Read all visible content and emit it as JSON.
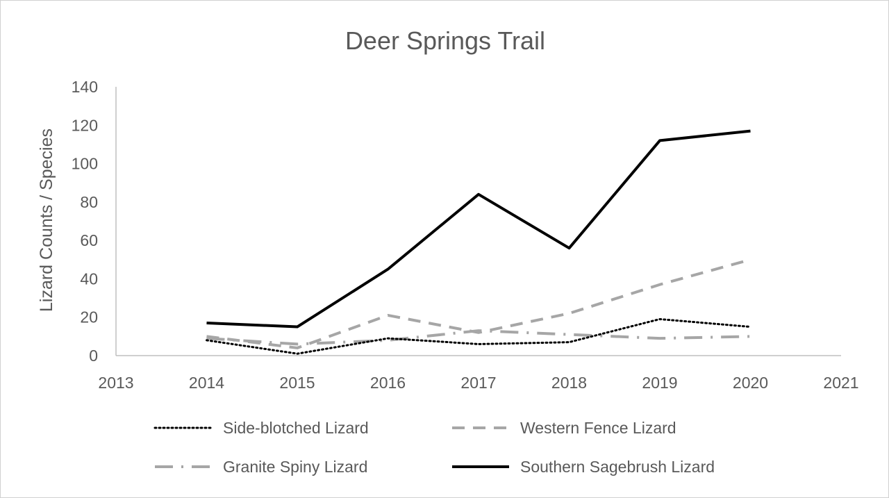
{
  "chart_data": {
    "type": "line",
    "title": "Deer Springs Trail",
    "xlabel": "",
    "ylabel": "Lizard Counts / Species",
    "xlim": [
      2013,
      2021
    ],
    "ylim": [
      0,
      140
    ],
    "x_ticks": [
      "2013",
      "2014",
      "2015",
      "2016",
      "2017",
      "2018",
      "2019",
      "2020",
      "2021"
    ],
    "y_ticks": [
      "0",
      "20",
      "40",
      "60",
      "80",
      "100",
      "120",
      "140"
    ],
    "grid": false,
    "legend_position": "bottom",
    "x": [
      2014,
      2015,
      2016,
      2017,
      2018,
      2019,
      2020
    ],
    "series": [
      {
        "name": "Side-blotched Lizard",
        "style": "dotted",
        "color": "#000000",
        "values": [
          8,
          1,
          9,
          6,
          7,
          19,
          15
        ]
      },
      {
        "name": "Western Fence Lizard",
        "style": "dashed",
        "color": "#a6a6a6",
        "values": [
          10,
          4,
          21,
          12,
          22,
          37,
          50
        ]
      },
      {
        "name": "Granite Spiny Lizard",
        "style": "dash-dot",
        "color": "#a6a6a6",
        "values": [
          9,
          6,
          8,
          13,
          11,
          9,
          10
        ]
      },
      {
        "name": "Southern Sagebrush Lizard",
        "style": "solid",
        "color": "#000000",
        "values": [
          17,
          15,
          45,
          84,
          56,
          112,
          117
        ]
      }
    ]
  }
}
